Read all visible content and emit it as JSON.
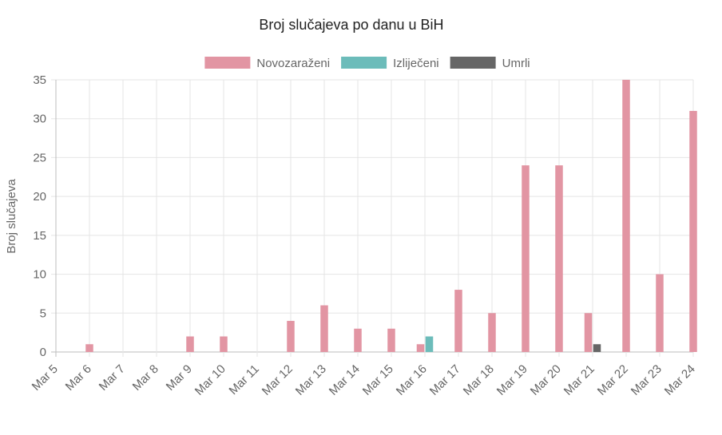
{
  "chart_data": {
    "type": "bar",
    "title": "Broj slučajeva po danu u BiH",
    "xlabel": "",
    "ylabel": "Broj slučajeva",
    "ylim": [
      0,
      35
    ],
    "yticks": [
      0,
      5,
      10,
      15,
      20,
      25,
      30,
      35
    ],
    "grid": true,
    "legend_position": "top",
    "categories": [
      "Mar 5",
      "Mar 6",
      "Mar 7",
      "Mar 8",
      "Mar 9",
      "Mar 10",
      "Mar 11",
      "Mar 12",
      "Mar 13",
      "Mar 14",
      "Mar 15",
      "Mar 16",
      "Mar 17",
      "Mar 18",
      "Mar 19",
      "Mar 20",
      "Mar 21",
      "Mar 22",
      "Mar 23",
      "Mar 24"
    ],
    "series": [
      {
        "name": "Novozaraženi",
        "color": "#e295a3",
        "values": [
          0,
          1,
          0,
          0,
          2,
          2,
          0,
          4,
          6,
          3,
          3,
          1,
          8,
          5,
          24,
          24,
          5,
          35,
          10,
          31
        ]
      },
      {
        "name": "Izliječeni",
        "color": "#6cbcba",
        "values": [
          0,
          0,
          0,
          0,
          0,
          0,
          0,
          0,
          0,
          0,
          0,
          2,
          0,
          0,
          0,
          0,
          0,
          0,
          0,
          0
        ]
      },
      {
        "name": "Umrli",
        "color": "#666666",
        "values": [
          0,
          0,
          0,
          0,
          0,
          0,
          0,
          0,
          0,
          0,
          0,
          0,
          0,
          0,
          0,
          0,
          1,
          0,
          0,
          0
        ]
      }
    ]
  }
}
